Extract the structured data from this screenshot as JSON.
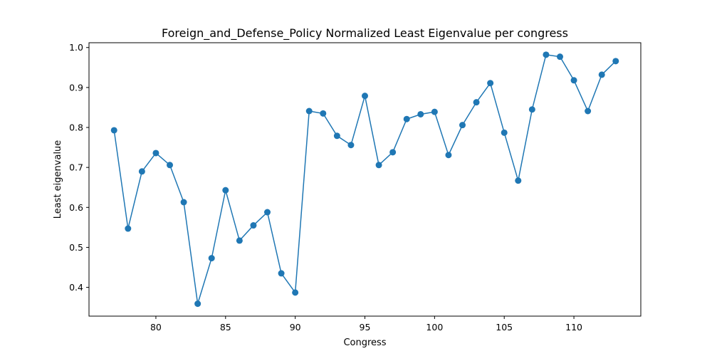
{
  "chart_data": {
    "type": "line",
    "title": "Foreign_and_Defense_Policy Normalized Least Eigenvalue per congress",
    "xlabel": "Congress",
    "ylabel": "Least eigenvalue",
    "xlim": [
      75.2,
      114.8
    ],
    "ylim": [
      0.328,
      1.012
    ],
    "xticks": [
      80,
      85,
      90,
      95,
      100,
      105,
      110
    ],
    "yticks": [
      0.4,
      0.5,
      0.6,
      0.7,
      0.8,
      0.9,
      1.0
    ],
    "xtick_labels": [
      "80",
      "85",
      "90",
      "95",
      "100",
      "105",
      "110"
    ],
    "ytick_labels": [
      "0.4",
      "0.5",
      "0.6",
      "0.7",
      "0.8",
      "0.9",
      "1.0"
    ],
    "grid": false,
    "legend": "none",
    "series": [
      {
        "color": "#1f77b4",
        "marker": "circle",
        "x": [
          77,
          78,
          79,
          80,
          81,
          82,
          83,
          84,
          85,
          86,
          87,
          88,
          89,
          90,
          91,
          92,
          93,
          94,
          95,
          96,
          97,
          98,
          99,
          100,
          101,
          102,
          103,
          104,
          105,
          106,
          107,
          108,
          109,
          110,
          111,
          112,
          113
        ],
        "values": [
          0.793,
          0.547,
          0.69,
          0.736,
          0.706,
          0.613,
          0.359,
          0.473,
          0.643,
          0.517,
          0.555,
          0.588,
          0.435,
          0.387,
          0.841,
          0.835,
          0.779,
          0.756,
          0.879,
          0.706,
          0.738,
          0.821,
          0.833,
          0.839,
          0.731,
          0.806,
          0.863,
          0.911,
          0.787,
          0.667,
          0.845,
          0.982,
          0.977,
          0.918,
          0.841,
          0.932,
          0.966
        ]
      }
    ]
  }
}
